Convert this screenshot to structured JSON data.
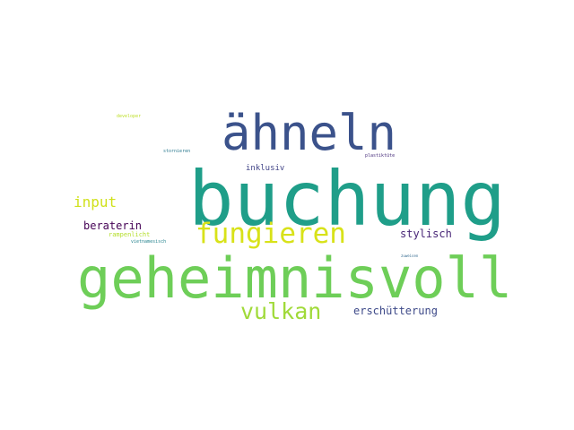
{
  "words": [
    {
      "text": "buchung",
      "color": "#1f9e89"
    },
    {
      "text": "geheimnisvoll",
      "color": "#6ece58"
    },
    {
      "text": "ähneln",
      "color": "#3b528b"
    },
    {
      "text": "fungieren",
      "color": "#d8e219"
    },
    {
      "text": "vulkan",
      "color": "#a0da39"
    },
    {
      "text": "input",
      "color": "#d0e11c"
    },
    {
      "text": "erschütterung",
      "color": "#3e4a89"
    },
    {
      "text": "stylisch",
      "color": "#482677"
    },
    {
      "text": "beraterin",
      "color": "#440154"
    },
    {
      "text": "inklusiv",
      "color": "#414487"
    },
    {
      "text": "rampenlicht",
      "color": "#b5de2b"
    },
    {
      "text": "vietnamesisch",
      "color": "#25838e"
    },
    {
      "text": "stornieren",
      "color": "#2a788e"
    },
    {
      "text": "plastiktüte",
      "color": "#472d7b"
    },
    {
      "text": "developer",
      "color": "#bddf26"
    },
    {
      "text": "zuweisen",
      "color": "#31688e"
    }
  ]
}
